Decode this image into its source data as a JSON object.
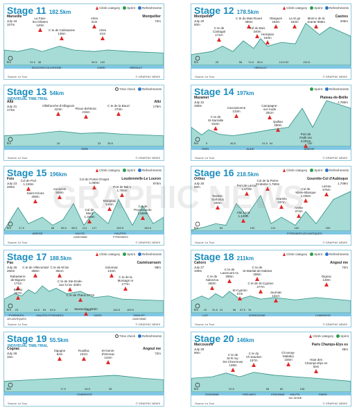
{
  "colors": {
    "title": "#1b8dbf",
    "profile_fill": "#a7dbd6",
    "profile_dark": "#2a8f82",
    "strip": "#7fc6e4",
    "climb": "#e02727",
    "sprint": "#2b9d4a",
    "refresh": "#2a75c8"
  },
  "watermark": "GRAPHIC NEWS",
  "stages": [
    {
      "title": "Stage 11",
      "km": "182.5km",
      "sub": "",
      "legend": [
        "Climb category",
        "Sprint",
        "Refreshments"
      ],
      "start": {
        "name": "Marseille",
        "date": "July 19",
        "alt": "107m"
      },
      "finish": {
        "name": "Montpellier",
        "alt": "72m"
      },
      "labels": [
        {
          "t": "La Fare-\nles-Oliviers\n120m",
          "x": 52,
          "y": 18
        },
        {
          "t": "C te de Calissanne\n136m",
          "x": 83,
          "y": 35
        },
        {
          "t": "Arles\n31m",
          "x": 130,
          "y": 18
        },
        {
          "t": "Arles\n41m",
          "x": 142,
          "y": 35
        }
      ],
      "ticks": [
        "31.5",
        "38",
        "96.5",
        "102"
      ],
      "tickx": [
        41,
        51,
        130,
        142
      ],
      "regions": [
        {
          "t": "BOUCHES-DU-RHONE",
          "x": 60
        },
        {
          "t": "GARD",
          "x": 140
        },
        {
          "t": "HERAULT",
          "x": 190
        }
      ],
      "source": "Source: Le Tour",
      "credit": "© GRAPHIC NEWS"
    },
    {
      "title": "Stage 12",
      "km": "178.5km",
      "sub": "",
      "legend": [
        "Climb category",
        "Sprint",
        "Refreshments"
      ],
      "start": {
        "name": "Montpellier",
        "date": "July 20",
        "alt": "50m"
      },
      "finish": {
        "name": "Castres",
        "alt": "205m"
      },
      "labels": [
        {
          "t": "C te du Mas-Rouet\n380m",
          "x": 83,
          "y": 18
        },
        {
          "t": "Olargues\n182m",
          "x": 122,
          "y": 18
        },
        {
          "t": "La Si ge\n194m",
          "x": 149,
          "y": 18
        },
        {
          "t": "Mont e de la\nJeante 958m",
          "x": 180,
          "y": 18
        },
        {
          "t": "C te de\nCantagal\n171m",
          "x": 40,
          "y": 32
        },
        {
          "t": "Col du Buis\n340m",
          "x": 95,
          "y": 32
        },
        {
          "t": "Herepian\n193m",
          "x": 110,
          "y": 41
        }
      ],
      "ticks": [
        "25",
        "58",
        "74.5",
        "85.5",
        "101",
        "102",
        "130.5"
      ],
      "tickx": [
        37,
        71,
        86,
        99,
        130,
        137,
        166
      ],
      "regions": [
        {
          "t": "HERAULT",
          "x": 100
        }
      ],
      "source": "Source: Le Tour",
      "credit": "© GRAPHIC NEWS"
    },
    {
      "title": "Stage 13",
      "km": "54km",
      "sub": "INDIVIDUAL TIME-TRIAL",
      "legend": [
        "Time check",
        "Refreshments"
      ],
      "start": {
        "name": "Albi",
        "date": "July 21",
        "alt": "173m"
      },
      "finish": {
        "name": "Albi",
        "alt": "179m"
      },
      "labels": [
        {
          "t": "Villefranche-d'Albigeois\n424m",
          "x": 78,
          "y": 27
        },
        {
          "t": "Rioux-dal-Bosc\n215m",
          "x": 118,
          "y": 31
        },
        {
          "t": "C te de la Bauzi\n273m",
          "x": 165,
          "y": 27
        }
      ],
      "ticks": [
        "18",
        "33",
        "38.5"
      ],
      "tickx": [
        78,
        137,
        153
      ],
      "regions": [
        {
          "t": "TARN",
          "x": 116
        }
      ],
      "source": "Source: Le Tour",
      "credit": "© GRAPHIC NEWS"
    },
    {
      "title": "Stage 14",
      "km": "197km",
      "sub": "",
      "legend": [
        "Sprint",
        "Refreshments"
      ],
      "start": {
        "name": "Mazamet",
        "date": "July 22",
        "alt": "338m"
      },
      "finish": {
        "name": "Plateau-de-Beille",
        "alt": "1,780m"
      },
      "labels": [
        {
          "t": "Carcassonne\n133m",
          "x": 65,
          "y": 30
        },
        {
          "t": "Campagne-\nsur-Aude\n281m",
          "x": 113,
          "y": 27
        },
        {
          "t": "C te de\nSt-Sarraille\n810m",
          "x": 35,
          "y": 43
        },
        {
          "t": "Quillan\n290m",
          "x": 125,
          "y": 50
        },
        {
          "t": "Port de\nPailh res\n2,001m",
          "x": 165,
          "y": 68
        }
      ],
      "ticks": [
        "9",
        "46.5",
        "91.5",
        "94",
        "160"
      ],
      "tickx": [
        22,
        60,
        106,
        115,
        171
      ],
      "regions": [
        {
          "t": "TARN",
          "x": 20
        },
        {
          "t": "AUDE",
          "x": 85
        },
        {
          "t": "ARIEGE",
          "x": 170
        }
      ],
      "source": "Source: Le Tour",
      "credit": "© GRAPHIC NEWS"
    },
    {
      "title": "Stage 15",
      "km": "196km",
      "sub": "",
      "legend": [
        "Climb category",
        "Sprint",
        "Refreshments"
      ],
      "start": {
        "name": "Foix",
        "date": "July 23",
        "alt": "405m"
      },
      "finish": {
        "name": "Loudenvielle-Le Louron",
        "alt": "970m"
      },
      "labels": [
        {
          "t": "Col de Port\n1,249m",
          "x": 35,
          "y": 18
        },
        {
          "t": "Col de Portet d'Aspet\n1,069m",
          "x": 130,
          "y": 16
        },
        {
          "t": "Saint-Girons\n408m",
          "x": 45,
          "y": 36
        },
        {
          "t": "Aucazein\n558m",
          "x": 80,
          "y": 30
        },
        {
          "t": "Col de\nMent\n1,349m",
          "x": 123,
          "y": 60
        },
        {
          "t": "Port de Bal s\n1,755m",
          "x": 170,
          "y": 27
        },
        {
          "t": "Marignac\n516m",
          "x": 152,
          "y": 47
        },
        {
          "t": "Col de\nPeyresourde\n1,569m",
          "x": 200,
          "y": 55
        }
      ],
      "ticks": [
        "27.5",
        "68",
        "85.5",
        "98.5",
        "114",
        "127",
        "159.9",
        "184.5"
      ],
      "tickx": [
        25,
        70,
        86,
        101,
        116,
        130,
        167,
        207
      ],
      "regions": [
        {
          "t": "ARIEGE",
          "x": 48
        },
        {
          "t": "HAUTE-\nGARONNE",
          "x": 110
        },
        {
          "t": "HAUTES-\nPYRENEES",
          "x": 168
        }
      ],
      "source": "Source: Le Tour",
      "credit": "© GRAPHIC NEWS"
    },
    {
      "title": "Stage 16",
      "km": "218.5km",
      "sub": "",
      "legend": [
        "Climb category",
        "Sprint",
        "Refreshments"
      ],
      "start": {
        "name": "Orthez",
        "date": "July 25",
        "alt": "50m"
      },
      "finish": {
        "name": "Gourette-Col d'Aubisque",
        "alt": "1,709m"
      },
      "labels": [
        {
          "t": "Col de la Pierre\nSt-Martin 1,760m",
          "x": 110,
          "y": 18
        },
        {
          "t": "Port de Larrau\n1,573m",
          "x": 80,
          "y": 25
        },
        {
          "t": "Col de\nMarie-Blanque\n1,035m",
          "x": 165,
          "y": 30
        },
        {
          "t": "Tardets-\nSorholus\n220m",
          "x": 38,
          "y": 40
        },
        {
          "t": "Aramits\n337m",
          "x": 130,
          "y": 44
        },
        {
          "t": "Arette\n374m",
          "x": 155,
          "y": 57
        },
        {
          "t": "Alto Laza\n1,129m",
          "x": 75,
          "y": 64
        },
        {
          "t": "Larrau\n575m",
          "x": 195,
          "y": 26
        }
      ],
      "ticks": [
        "54",
        "100",
        "131",
        "162",
        "200"
      ],
      "tickx": [
        43,
        88,
        118,
        152,
        197
      ],
      "regions": [
        {
          "t": "PYRENEES-ATLANTIQUES",
          "x": 158
        }
      ],
      "source": "Source: Le Tour",
      "credit": "© GRAPHIC NEWS"
    },
    {
      "title": "Stage 17",
      "km": "188.5km",
      "sub": "",
      "legend": [
        "Climb category",
        "Sprint",
        "Refreshments"
      ],
      "start": {
        "name": "Pau",
        "date": "July 26",
        "alt": "260m"
      },
      "finish": {
        "name": "Castelsarrasin",
        "alt": "88m"
      },
      "labels": [
        {
          "t": "C te de Villecomtal\n356m",
          "x": 45,
          "y": 22
        },
        {
          "t": "C te de M lan\n361m",
          "x": 80,
          "y": 22
        },
        {
          "t": "Solomiac\n134m",
          "x": 155,
          "y": 22
        },
        {
          "t": "Rabastens-\nde-Bigorre\n171m",
          "x": 20,
          "y": 35
        },
        {
          "t": "C te de Ste-Dode-\naux-Croix 328m",
          "x": 95,
          "y": 42
        },
        {
          "t": "C te de la\nMontagn re\n177m",
          "x": 175,
          "y": 36
        },
        {
          "t": "Baleix\n357m",
          "x": 20,
          "y": 54
        },
        {
          "t": "C te de Theux 277m",
          "x": 110,
          "y": 62
        },
        {
          "t": "Masseube 203m",
          "x": 118,
          "y": 82
        }
      ],
      "ticks": [
        "23",
        "44.5",
        "54",
        "63.5",
        "87",
        "120",
        "146.5",
        "169.5"
      ],
      "tickx": [
        18,
        47,
        58,
        70,
        90,
        122,
        162,
        182
      ],
      "regions": [
        {
          "t": "PYRENEES-\nATLANTIQUES",
          "x": 18
        },
        {
          "t": "HAUTES-PYRENEES",
          "x": 66
        },
        {
          "t": "GERS",
          "x": 135
        },
        {
          "t": "TARN-ET-\nGARONNE",
          "x": 195
        }
      ],
      "source": "Source: Le Tour",
      "credit": "© GRAPHIC NEWS"
    },
    {
      "title": "Stage 18",
      "km": "211km",
      "sub": "",
      "legend": [
        "Climb category",
        "Sprint",
        "Refreshments"
      ],
      "start": {
        "name": "Cahors",
        "date": "July 27",
        "alt": "109m"
      },
      "finish": {
        "name": "Angoul me",
        "alt": "72m"
      },
      "labels": [
        {
          "t": "C te de\nSt-Martial-de-Nabirat\n288m",
          "x": 95,
          "y": 22
        },
        {
          "t": "C te de\nSalvezou\n260m",
          "x": 30,
          "y": 35
        },
        {
          "t": "C te de\nLavercant ns\n288m",
          "x": 55,
          "y": 25
        },
        {
          "t": "Dignac\n148m",
          "x": 195,
          "y": 35
        },
        {
          "t": "C te de St-Cyprien\n277m",
          "x": 100,
          "y": 45
        },
        {
          "t": "St-Cyprien\n57m",
          "x": 70,
          "y": 55
        },
        {
          "t": "Journiac\n131m",
          "x": 122,
          "y": 58
        }
      ],
      "ticks": [
        "23",
        "31.5",
        "41",
        "58",
        "67.5",
        "76"
      ],
      "tickx": [
        20,
        34,
        43,
        62,
        74,
        84
      ],
      "regions": [
        {
          "t": "LOT",
          "x": 20
        },
        {
          "t": "DORDOGNE",
          "x": 95
        },
        {
          "t": "CHARENTE",
          "x": 190
        }
      ],
      "source": "Source: Le Tour",
      "credit": "© GRAPHIC NEWS"
    },
    {
      "title": "Stage 19",
      "km": "55.5km",
      "sub": "INDIVIDUAL TIME-TRIAL",
      "legend": [
        "Time check",
        "Refreshments"
      ],
      "start": {
        "name": "Cognac",
        "date": "July 28",
        "alt": "10m"
      },
      "finish": {
        "name": "Angoul me",
        "alt": "72m"
      },
      "labels": [
        {
          "t": "Sigogne\n64m",
          "x": 80,
          "y": 24
        },
        {
          "t": "Rouillac\n101m",
          "x": 115,
          "y": 24
        },
        {
          "t": "St-Genis-\nd'Hiersac\n134m",
          "x": 150,
          "y": 24
        }
      ],
      "ticks": [
        "17.5",
        "26.5",
        "35"
      ],
      "tickx": [
        85,
        120,
        153
      ],
      "regions": [
        {
          "t": "CHARENTE",
          "x": 116
        }
      ],
      "source": "Source: Le Tour",
      "credit": "© GRAPHIC NEWS"
    },
    {
      "title": "Stage 20",
      "km": "146km",
      "sub": "",
      "legend": [
        "Climb category",
        "Sprint"
      ],
      "start": {
        "name": "Marcoussis",
        "date": "July 29",
        "alt": "90m"
      },
      "finish": {
        "name": "Paris Champs-Elys es",
        "alt": "45m"
      },
      "labels": [
        {
          "t": "C te de\nSt-R my-\nles-Chevreuse\n128m",
          "x": 60,
          "y": 30
        },
        {
          "t": "C te du\nCh teaufort\n157m",
          "x": 90,
          "y": 28
        },
        {
          "t": "Ch tenay-\nMalabry\n155m",
          "x": 140,
          "y": 27
        },
        {
          "t": "Haut des\nChamps-Elys es\n60m",
          "x": 180,
          "y": 37
        }
      ],
      "ticks": [
        "20.5",
        "65",
        "82",
        "108"
      ],
      "tickx": [
        58,
        110,
        130,
        160
      ],
      "regions": [
        {
          "t": "ESSONNE",
          "x": 30
        },
        {
          "t": "YVELINES",
          "x": 83
        },
        {
          "t": "ESSONNE",
          "x": 125
        },
        {
          "t": "HAUTS-\nDE-SEINE",
          "x": 150
        },
        {
          "t": "PARIS",
          "x": 190
        }
      ],
      "source": "Source: Le Tour",
      "credit": "© GRAPHIC NEWS"
    }
  ]
}
